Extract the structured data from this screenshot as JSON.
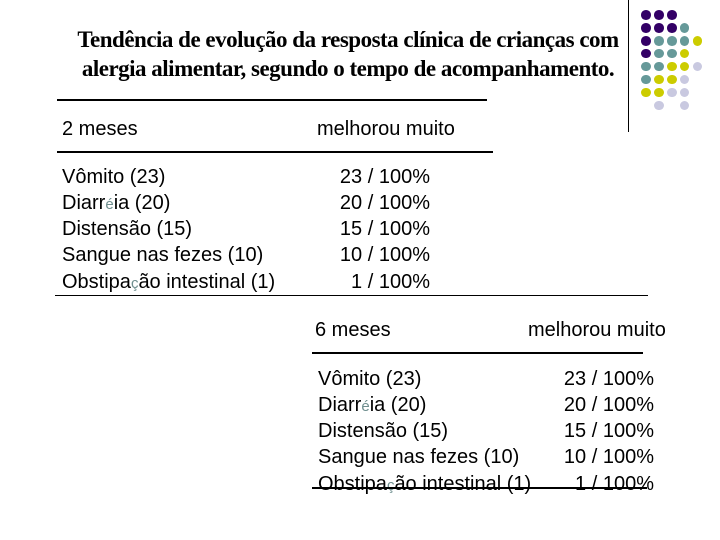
{
  "slide": {
    "title_line1": "Tendência de evolução da resposta clínica de crianças com",
    "title_line2": "alergia alimentar, segundo o tempo de acompanhamento."
  },
  "tables": [
    {
      "period": "2 meses",
      "response": "melhorou muito",
      "rows": [
        {
          "pre": "Vômito (23)",
          "accent": "",
          "post": "",
          "value": "23 / 100%"
        },
        {
          "pre": "Diarr",
          "accent": "é",
          "post": "ia (20)",
          "value": "20 / 100%"
        },
        {
          "pre": "Distensão (15)",
          "accent": "",
          "post": "",
          "value": "15 / 100%"
        },
        {
          "pre": "Sangue nas fezes (10)",
          "accent": "",
          "post": "",
          "value": "10 / 100%"
        },
        {
          "pre": "Obstipa",
          "accent": "ç",
          "post": "ão intestinal (1)",
          "value": "1 / 100%"
        }
      ]
    },
    {
      "period": "6 meses",
      "response": "melhorou muito",
      "rows": [
        {
          "pre": "Vômito (23)",
          "accent": "",
          "post": "",
          "value": "23 / 100%"
        },
        {
          "pre": "Diarr",
          "accent": "é",
          "post": "ia (20)",
          "value": "20 / 100%"
        },
        {
          "pre": "Distensão (15)",
          "accent": "",
          "post": "",
          "value": "15 / 100%"
        },
        {
          "pre": "Sangue nas fezes (10)",
          "accent": "",
          "post": "",
          "value": "10 / 100%"
        },
        {
          "pre": "Obstipa",
          "accent": "ç",
          "post": "ão intestinal (1)",
          "value": "1 / 100%"
        }
      ]
    }
  ],
  "decoration": {
    "accent_char_color": "#6e8e8e",
    "text_color": "#000000",
    "background_color": "#ffffff",
    "dots": {
      "colors": {
        "P": "#330066",
        "T": "#669999",
        "Y": "#cccc00",
        "L": "#c9c9e0"
      },
      "pattern": [
        "PPP..",
        "PPPT.",
        "PTTTY",
        "PTTY.",
        "TTYYL",
        "TYYL.",
        "YYLL.",
        ".L.L."
      ]
    }
  }
}
